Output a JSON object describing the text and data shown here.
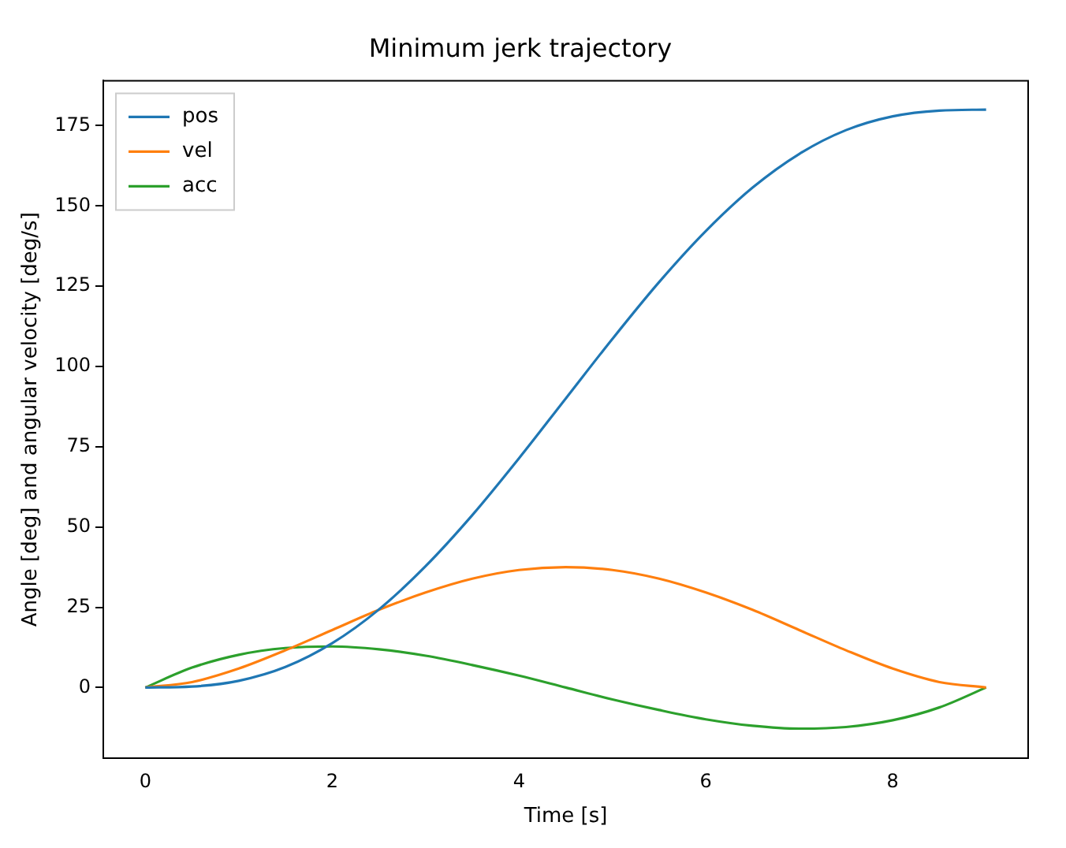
{
  "chart_data": {
    "type": "line",
    "title": "Minimum jerk trajectory",
    "xlabel": "Time [s]",
    "ylabel": "Angle [deg] and angular velocity [deg/s]",
    "x": [
      0,
      0.5,
      1,
      1.5,
      2,
      2.5,
      3,
      3.5,
      4,
      4.5,
      5,
      5.5,
      6,
      6.5,
      7,
      7.5,
      8,
      8.5,
      9
    ],
    "series": [
      {
        "name": "pos",
        "color": "#1f77b4",
        "values": [
          0,
          0.3,
          2.1,
          6.4,
          13.8,
          24.3,
          37.8,
          53.7,
          71.4,
          90,
          108.6,
          126.3,
          142.2,
          155.7,
          166.2,
          173.6,
          177.9,
          179.7,
          180
        ]
      },
      {
        "name": "vel",
        "color": "#ff7f0e",
        "values": [
          0,
          1.7,
          5.9,
          11.6,
          17.9,
          24.2,
          29.6,
          33.9,
          36.6,
          37.5,
          36.6,
          33.9,
          29.6,
          24.2,
          17.9,
          11.6,
          5.9,
          1.7,
          0
        ]
      },
      {
        "name": "acc",
        "color": "#2ca02c",
        "values": [
          0,
          6.2,
          10.2,
          12.3,
          12.8,
          11.9,
          9.9,
          7.0,
          3.7,
          0,
          -3.7,
          -7.0,
          -9.9,
          -11.9,
          -12.8,
          -12.3,
          -10.2,
          -6.2,
          0
        ]
      }
    ],
    "xlim": [
      -0.45,
      9.45
    ],
    "xticks": [
      0,
      2,
      4,
      6,
      8
    ],
    "ylim": [
      -22,
      189
    ],
    "yticks": [
      0,
      25,
      50,
      75,
      100,
      125,
      150,
      175
    ],
    "grid": false,
    "legend": "top left",
    "marker": "none",
    "line_style": "solid"
  }
}
